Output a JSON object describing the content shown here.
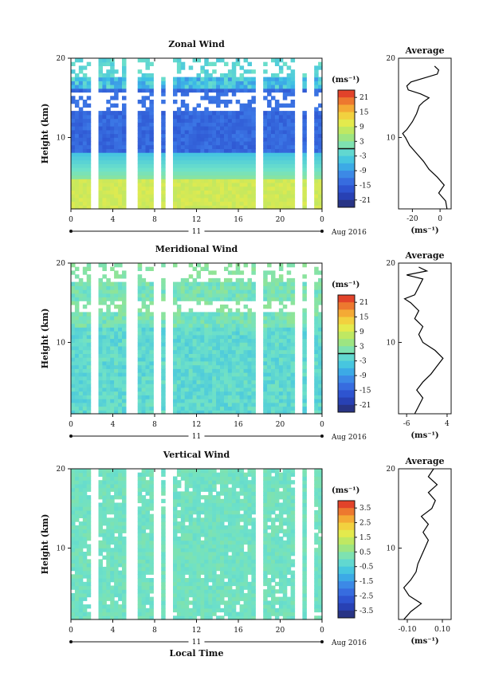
{
  "chart_data": [
    {
      "type": "heatmap",
      "title": "Zonal Wind",
      "ylabel": "Height (km)",
      "y_ticks": [
        "20",
        "10"
      ],
      "x_ticks": [
        "0",
        "4",
        "8",
        "12",
        "16",
        "20",
        "0"
      ],
      "ylim": [
        1,
        20
      ],
      "xlim": [
        0,
        24
      ],
      "date_day": "11",
      "date_label": "Aug 2016",
      "units": "(ms⁻¹)",
      "colorbar_ticks": [
        "21",
        "15",
        "9",
        "3",
        "-3",
        "-9",
        "-15",
        "-21"
      ],
      "colorbar_range": [
        -24,
        24
      ],
      "profile_title": "Average",
      "profile_xlabel": "(ms⁻¹)",
      "profile_x_ticks": [
        "-20",
        "0"
      ],
      "profile_xlim": [
        -30,
        8
      ],
      "profile_y_ticks": [
        "20",
        "10"
      ],
      "gaps_hours": [
        [
          2.2,
          2.6
        ],
        [
          5.3,
          6.2
        ],
        [
          8.0,
          8.3
        ],
        [
          9.2,
          9.7
        ],
        [
          17.8,
          18.2
        ],
        [
          21.5,
          21.8
        ],
        [
          22.7,
          23.0
        ]
      ],
      "profile": [
        [
          1,
          5
        ],
        [
          2,
          4
        ],
        [
          3,
          -1
        ],
        [
          4,
          3
        ],
        [
          5,
          -2
        ],
        [
          6,
          -8
        ],
        [
          7,
          -12
        ],
        [
          8,
          -17
        ],
        [
          9,
          -22
        ],
        [
          10,
          -25
        ],
        [
          10.5,
          -27
        ],
        [
          11,
          -24
        ],
        [
          12,
          -20
        ],
        [
          13,
          -17
        ],
        [
          14,
          -15
        ],
        [
          14.5,
          -12
        ],
        [
          15,
          -8
        ],
        [
          15.5,
          -14
        ],
        [
          16,
          -23
        ],
        [
          16.5,
          -24
        ],
        [
          17,
          -21
        ],
        [
          18,
          -2
        ],
        [
          18.5,
          -1
        ],
        [
          19,
          -4
        ]
      ]
    },
    {
      "type": "heatmap",
      "title": "Meridional Wind",
      "ylabel": "Height (km)",
      "y_ticks": [
        "20",
        "10"
      ],
      "x_ticks": [
        "0",
        "4",
        "8",
        "12",
        "16",
        "20",
        "0"
      ],
      "ylim": [
        1,
        20
      ],
      "xlim": [
        0,
        24
      ],
      "date_day": "11",
      "date_label": "Aug 2016",
      "units": "(ms⁻¹)",
      "colorbar_ticks": [
        "21",
        "15",
        "9",
        "3",
        "-3",
        "-9",
        "-15",
        "-21"
      ],
      "colorbar_range": [
        -24,
        24
      ],
      "profile_title": "Average",
      "profile_xlabel": "(ms⁻¹)",
      "profile_x_ticks": [
        "-6",
        "4"
      ],
      "profile_xlim": [
        -8,
        5
      ],
      "profile_y_ticks": [
        "20",
        "10"
      ],
      "gaps_hours": [
        [
          2.2,
          2.6
        ],
        [
          5.3,
          6.2
        ],
        [
          8.0,
          8.3
        ],
        [
          9.2,
          9.7
        ],
        [
          17.8,
          18.2
        ],
        [
          21.5,
          21.8
        ],
        [
          22.7,
          23.0
        ]
      ],
      "profile": [
        [
          1,
          -4
        ],
        [
          2,
          -3
        ],
        [
          3,
          -2
        ],
        [
          4,
          -3.5
        ],
        [
          5,
          -2
        ],
        [
          6,
          0
        ],
        [
          7,
          1.5
        ],
        [
          8,
          3
        ],
        [
          9,
          1
        ],
        [
          10,
          -2
        ],
        [
          11,
          -3
        ],
        [
          12,
          -2
        ],
        [
          13,
          -4
        ],
        [
          14,
          -3
        ],
        [
          15,
          -5
        ],
        [
          15.5,
          -6.5
        ],
        [
          16,
          -4
        ],
        [
          17,
          -3
        ],
        [
          18,
          -2
        ],
        [
          18.5,
          -6
        ],
        [
          19,
          -1
        ],
        [
          19.5,
          -3
        ]
      ]
    },
    {
      "type": "heatmap",
      "title": "Vertical Wind",
      "ylabel": "Height (km)",
      "xlabel": "Local Time",
      "y_ticks": [
        "20",
        "10"
      ],
      "x_ticks": [
        "0",
        "4",
        "8",
        "12",
        "16",
        "20",
        "0"
      ],
      "ylim": [
        1,
        20
      ],
      "xlim": [
        0,
        24
      ],
      "date_day": "11",
      "date_label": "Aug 2016",
      "units": "(ms⁻¹)",
      "colorbar_ticks": [
        "3.5",
        "2.5",
        "1.5",
        "0.5",
        "-0.5",
        "-1.5",
        "-2.5",
        "-3.5"
      ],
      "colorbar_range": [
        -4,
        4
      ],
      "profile_title": "Average",
      "profile_xlabel": "(ms⁻¹)",
      "profile_x_ticks": [
        "-0.10",
        "0.10"
      ],
      "profile_xlim": [
        -0.15,
        0.15
      ],
      "profile_y_ticks": [
        "20",
        "10"
      ],
      "gaps_hours": [
        [
          2.2,
          2.6
        ],
        [
          5.3,
          6.2
        ],
        [
          8.0,
          8.3
        ],
        [
          9.2,
          9.7
        ],
        [
          17.8,
          18.2
        ],
        [
          21.5,
          21.8
        ],
        [
          22.7,
          23.0
        ]
      ],
      "profile": [
        [
          1,
          -0.12
        ],
        [
          2,
          -0.08
        ],
        [
          3,
          -0.02
        ],
        [
          4,
          -0.09
        ],
        [
          5,
          -0.12
        ],
        [
          6,
          -0.08
        ],
        [
          7,
          -0.05
        ],
        [
          8,
          -0.04
        ],
        [
          9,
          -0.02
        ],
        [
          10,
          0.0
        ],
        [
          11,
          0.02
        ],
        [
          12,
          -0.01
        ],
        [
          13,
          0.02
        ],
        [
          14,
          -0.02
        ],
        [
          15,
          0.04
        ],
        [
          16,
          0.06
        ],
        [
          17,
          0.02
        ],
        [
          18,
          0.07
        ],
        [
          19,
          0.02
        ],
        [
          20,
          0.05
        ]
      ]
    }
  ]
}
